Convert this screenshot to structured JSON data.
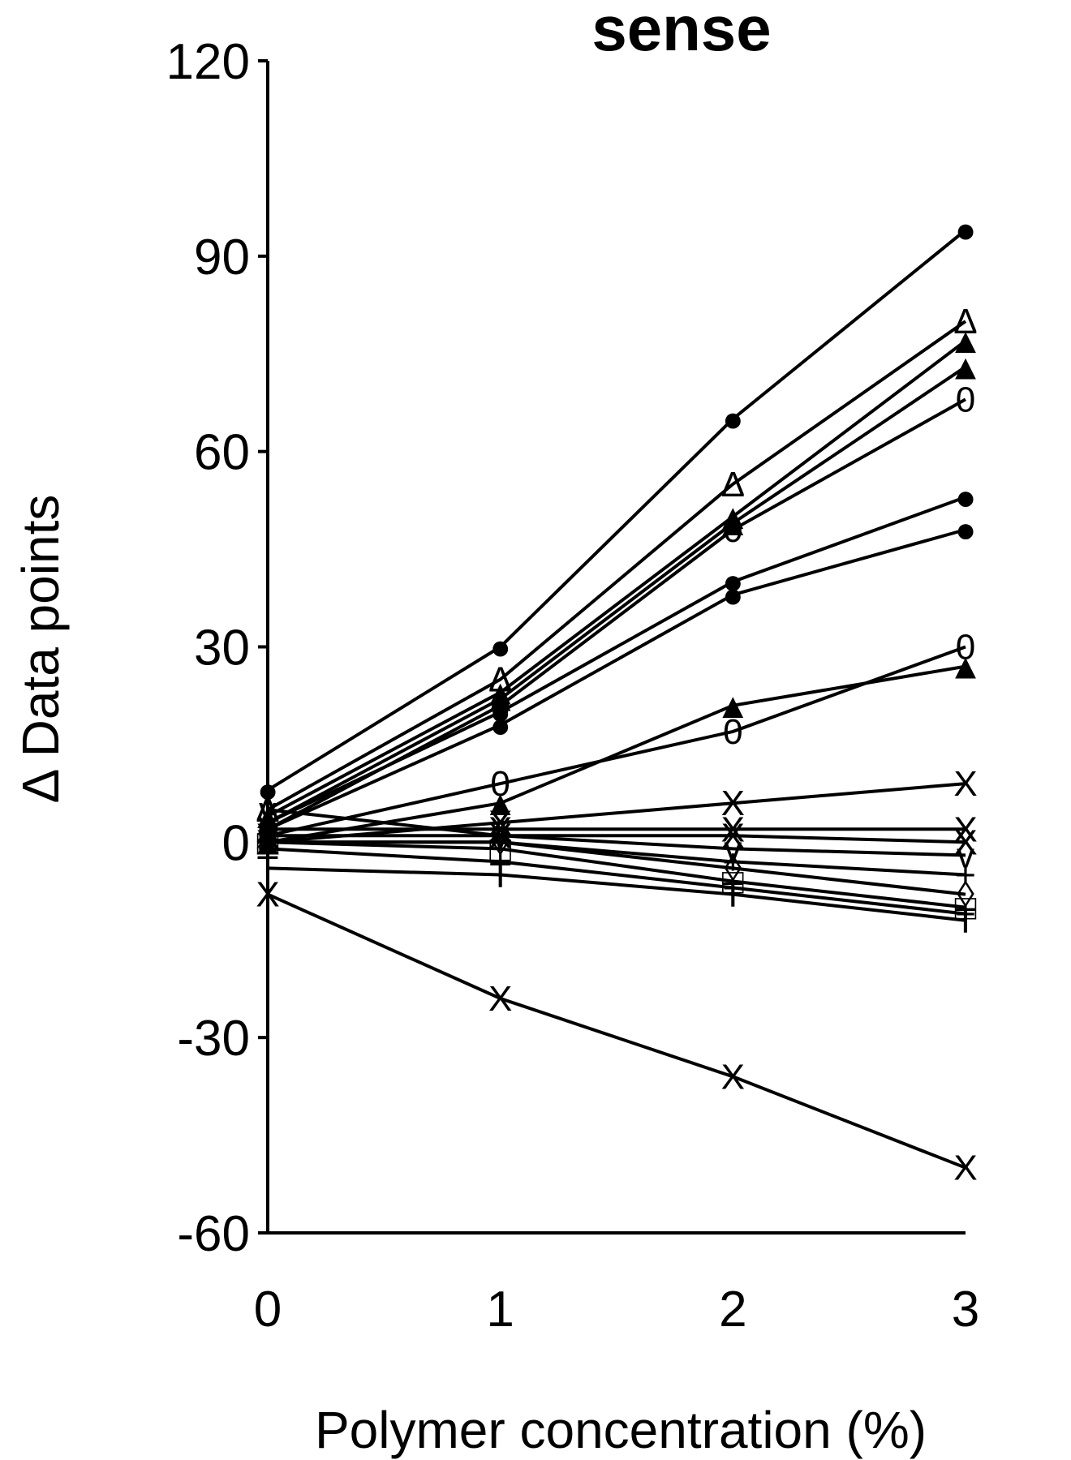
{
  "chart_data": {
    "type": "line",
    "title": "sense",
    "xlabel": "Polymer concentration (%)",
    "ylabel": "Δ Data points",
    "xlim": [
      0,
      3
    ],
    "ylim": [
      -60,
      120
    ],
    "x_ticks": [
      "0",
      "1",
      "2",
      "3"
    ],
    "y_ticks": [
      "120",
      "90",
      "60",
      "30",
      "0",
      "-30",
      "-60"
    ],
    "grid": false,
    "legend": "none",
    "x": [
      0,
      1,
      2,
      3
    ],
    "series": [
      {
        "marker": "●",
        "values": [
          8,
          30,
          65,
          94
        ]
      },
      {
        "marker": "Δ",
        "values": [
          5,
          25,
          55,
          80
        ]
      },
      {
        "marker": "▲",
        "values": [
          4,
          23,
          50,
          77
        ]
      },
      {
        "marker": "▲",
        "values": [
          3,
          22,
          49,
          73
        ]
      },
      {
        "marker": "0",
        "values": [
          2,
          21,
          48,
          68
        ]
      },
      {
        "marker": "●",
        "values": [
          3,
          20,
          40,
          53
        ]
      },
      {
        "marker": "●",
        "values": [
          2,
          18,
          38,
          48
        ]
      },
      {
        "marker": "0",
        "values": [
          1,
          9,
          17,
          30
        ]
      },
      {
        "marker": "▲",
        "values": [
          0,
          6,
          21,
          27
        ]
      },
      {
        "marker": "X",
        "values": [
          0,
          3,
          6,
          9
        ]
      },
      {
        "marker": "X",
        "values": [
          2,
          2,
          2,
          2
        ]
      },
      {
        "marker": "X",
        "values": [
          1,
          1,
          1,
          0
        ]
      },
      {
        "marker": "v",
        "values": [
          5,
          1,
          -1,
          -2
        ]
      },
      {
        "marker": "+",
        "values": [
          0,
          0,
          -3,
          -5
        ]
      },
      {
        "marker": "◊",
        "values": [
          0,
          0,
          -4,
          -8
        ]
      },
      {
        "marker": "□",
        "values": [
          0,
          -1,
          -6,
          -10
        ]
      },
      {
        "marker": "T",
        "values": [
          -4,
          -5,
          -8,
          -12
        ]
      },
      {
        "marker": "+",
        "values": [
          -1,
          -3,
          -7,
          -11
        ]
      },
      {
        "marker": "X",
        "values": [
          -8,
          -24,
          -36,
          -50
        ]
      }
    ]
  }
}
